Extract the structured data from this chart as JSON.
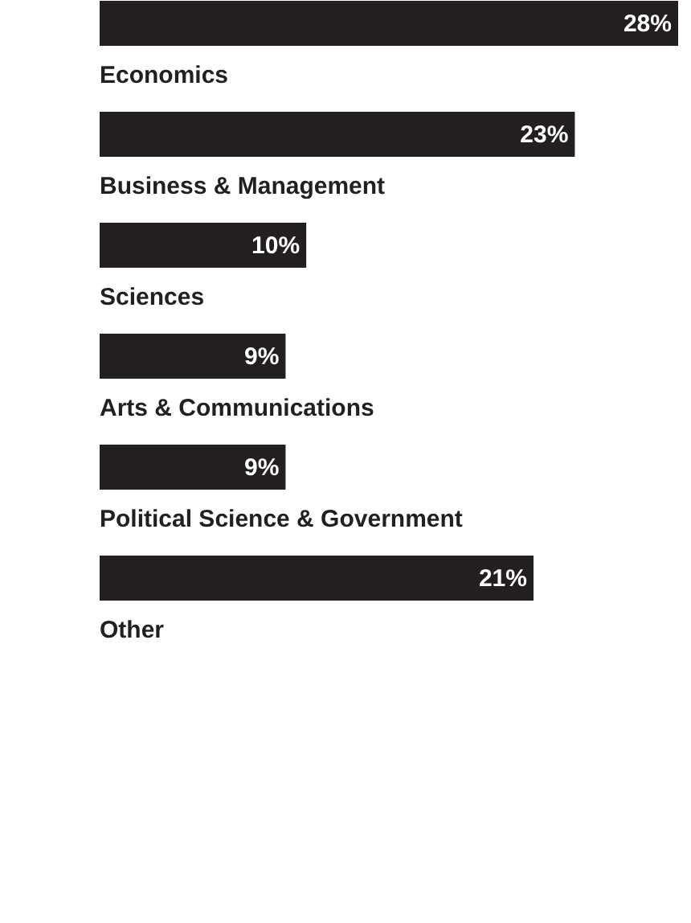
{
  "chart_data": {
    "type": "bar",
    "orientation": "horizontal",
    "categories": [
      "Economics",
      "Business & Management",
      "Sciences",
      "Arts & Communications",
      "Political Science & Government",
      "Other"
    ],
    "values": [
      28,
      23,
      10,
      9,
      9,
      21
    ],
    "value_labels": [
      "28%",
      "23%",
      "10%",
      "9%",
      "9%",
      "21%"
    ],
    "color": "#231f20"
  }
}
